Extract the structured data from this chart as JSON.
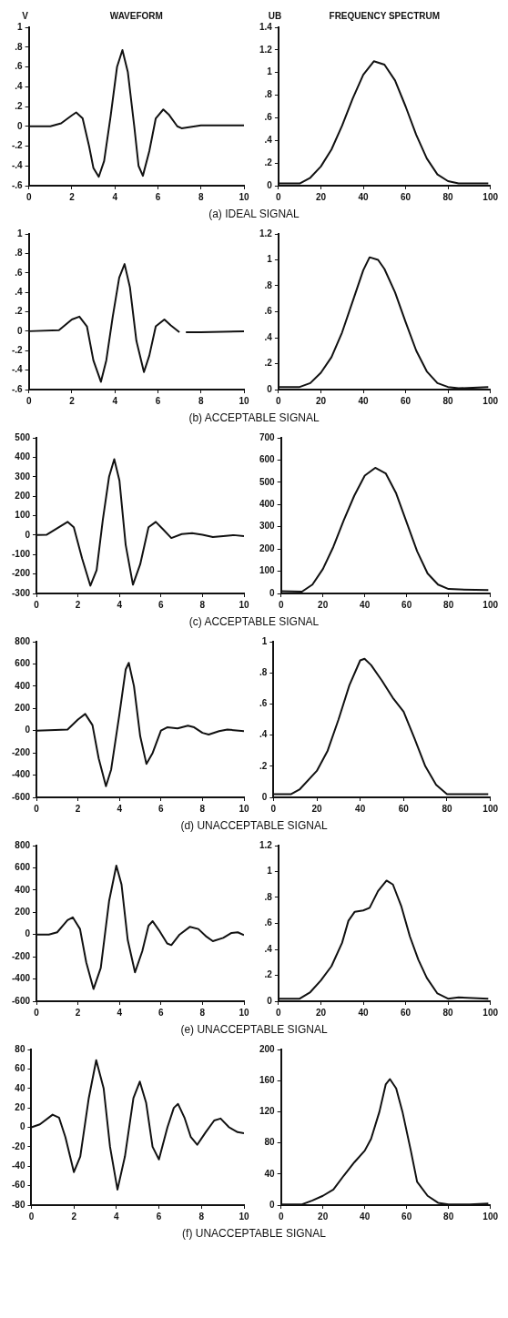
{
  "chart_data": [
    {
      "type": "line",
      "title": "WAVEFORM",
      "ylabel": "V",
      "annotations": [
        "(a) IDEAL SIGNAL"
      ],
      "color": "#111111",
      "marker": "none",
      "grid": false,
      "xlim": [
        0,
        10
      ],
      "xticks": [
        0,
        2,
        4,
        6,
        8,
        10
      ],
      "ylim": [
        -0.6,
        1
      ],
      "yticks": [
        {
          "value": 1,
          "label": "1"
        },
        {
          "value": 0.8,
          "label": ".8"
        },
        {
          "value": 0.6,
          "label": ".6"
        },
        {
          "value": 0.4,
          "label": ".4"
        },
        {
          "value": 0.2,
          "label": ".2"
        },
        0,
        {
          "value": -0.2,
          "label": "-.2"
        },
        {
          "value": -0.4,
          "label": "-.4"
        },
        {
          "value": -0.6,
          "label": "-.6"
        }
      ],
      "x": [
        0,
        1,
        1.5,
        2,
        2.2,
        2.5,
        2.8,
        3,
        3.25,
        3.5,
        3.8,
        4.1,
        4.35,
        4.6,
        4.9,
        5.1,
        5.3,
        5.6,
        5.9,
        6.25,
        6.5,
        6.9,
        7.1,
        8,
        10
      ],
      "values": [
        0,
        0,
        0.03,
        0.11,
        0.14,
        0.08,
        -0.2,
        -0.42,
        -0.51,
        -0.35,
        0.1,
        0.6,
        0.77,
        0.55,
        0,
        -0.4,
        -0.5,
        -0.25,
        0.08,
        0.17,
        0.12,
        0,
        -0.02,
        0.01,
        0.01
      ]
    },
    {
      "type": "line",
      "title": "FREQUENCY SPECTRUM",
      "ylabel": "UB",
      "color": "#111111",
      "marker": "none",
      "grid": false,
      "xlim": [
        0,
        100
      ],
      "xticks": [
        0,
        20,
        40,
        60,
        80,
        100
      ],
      "ylim": [
        0,
        1.4
      ],
      "yticks": [
        {
          "value": 1.4,
          "label": "1.4"
        },
        {
          "value": 1.2,
          "label": "1.2"
        },
        1,
        {
          "value": 0.8,
          "label": ".8"
        },
        {
          "value": 0.6,
          "label": ".6"
        },
        {
          "value": 0.4,
          "label": ".4"
        },
        {
          "value": 0.2,
          "label": ".2"
        },
        0
      ],
      "x": [
        0,
        10,
        15,
        20,
        25,
        30,
        35,
        40,
        45,
        50,
        55,
        60,
        65,
        70,
        75,
        80,
        85,
        99
      ],
      "values": [
        0.02,
        0.02,
        0.07,
        0.17,
        0.32,
        0.53,
        0.77,
        0.98,
        1.1,
        1.07,
        0.93,
        0.7,
        0.45,
        0.24,
        0.1,
        0.04,
        0.02,
        0.02
      ]
    },
    {
      "type": "line",
      "annotations": [
        "(b) ACCEPTABLE SIGNAL"
      ],
      "color": "#111111",
      "marker": "none",
      "grid": false,
      "xlim": [
        0,
        10
      ],
      "xticks": [
        0,
        2,
        4,
        6,
        8,
        10
      ],
      "ylim": [
        -0.6,
        1
      ],
      "yticks": [
        {
          "value": 1,
          "label": "1"
        },
        {
          "value": 0.8,
          "label": ".8"
        },
        {
          "value": 0.6,
          "label": ".6"
        },
        {
          "value": 0.4,
          "label": ".4"
        },
        {
          "value": 0.2,
          "label": ".2"
        },
        0,
        {
          "value": -0.2,
          "label": "-.2"
        },
        {
          "value": -0.4,
          "label": "-.4"
        },
        {
          "value": -0.6,
          "label": "-.6"
        }
      ],
      "x": [
        0,
        1.4,
        2,
        2.35,
        2.7,
        3,
        3.35,
        3.6,
        3.9,
        4.2,
        4.45,
        4.7,
        5,
        5.35,
        5.6,
        5.9,
        6.3,
        6.6,
        7,
        7.15,
        7.3,
        8,
        10
      ],
      "values": [
        0,
        0.01,
        0.12,
        0.15,
        0.05,
        -0.3,
        -0.52,
        -0.3,
        0.15,
        0.55,
        0.69,
        0.45,
        -0.1,
        -0.42,
        -0.25,
        0.05,
        0.12,
        0.06,
        -0.01,
        null,
        -0.01,
        -0.01,
        0
      ]
    },
    {
      "type": "line",
      "color": "#111111",
      "marker": "none",
      "grid": false,
      "xlim": [
        0,
        100
      ],
      "xticks": [
        0,
        20,
        40,
        60,
        80,
        100
      ],
      "ylim": [
        0,
        1.2
      ],
      "yticks": [
        {
          "value": 1.2,
          "label": "1.2"
        },
        1,
        {
          "value": 0.8,
          "label": ".8"
        },
        {
          "value": 0.6,
          "label": ".6"
        },
        {
          "value": 0.4,
          "label": ".4"
        },
        {
          "value": 0.2,
          "label": ".2"
        },
        0
      ],
      "x": [
        0,
        10,
        15,
        20,
        25,
        30,
        35,
        40,
        43,
        47,
        50,
        55,
        60,
        65,
        70,
        75,
        80,
        85,
        99
      ],
      "values": [
        0.02,
        0.02,
        0.05,
        0.13,
        0.25,
        0.44,
        0.68,
        0.92,
        1.02,
        1,
        0.93,
        0.75,
        0.52,
        0.3,
        0.14,
        0.05,
        0.02,
        0.01,
        0.02
      ]
    },
    {
      "type": "line",
      "annotations": [
        "(c) ACCEPTABLE SIGNAL"
      ],
      "color": "#111111",
      "marker": "none",
      "grid": false,
      "xlim": [
        0,
        10
      ],
      "xticks": [
        0,
        2,
        4,
        6,
        8,
        10
      ],
      "ylim": [
        -300,
        500
      ],
      "yticks": [
        500,
        400,
        300,
        200,
        100,
        0,
        -100,
        -200,
        -300
      ],
      "x": [
        0,
        0.5,
        1,
        1.5,
        1.8,
        2.2,
        2.6,
        2.9,
        3.2,
        3.5,
        3.75,
        4,
        4.3,
        4.65,
        5,
        5.4,
        5.75,
        6.1,
        6.5,
        7,
        7.5,
        8,
        8.5,
        9,
        9.5,
        10
      ],
      "values": [
        0,
        2,
        35,
        68,
        40,
        -120,
        -260,
        -180,
        80,
        300,
        390,
        280,
        -50,
        -255,
        -150,
        40,
        68,
        30,
        -15,
        5,
        10,
        2,
        -10,
        -5,
        0,
        -5
      ]
    },
    {
      "type": "line",
      "color": "#111111",
      "marker": "none",
      "grid": false,
      "xlim": [
        0,
        100
      ],
      "xticks": [
        0,
        20,
        40,
        60,
        80,
        100
      ],
      "ylim": [
        0,
        700
      ],
      "yticks": [
        700,
        600,
        500,
        400,
        300,
        200,
        100,
        0
      ],
      "x": [
        0,
        10,
        15,
        20,
        25,
        30,
        35,
        40,
        45,
        50,
        55,
        60,
        65,
        70,
        75,
        80,
        85,
        99
      ],
      "values": [
        10,
        8,
        40,
        110,
        210,
        330,
        440,
        530,
        565,
        540,
        450,
        320,
        190,
        90,
        40,
        20,
        18,
        15
      ]
    },
    {
      "type": "line",
      "annotations": [
        "(d) UNACCEPTABLE SIGNAL"
      ],
      "color": "#111111",
      "marker": "none",
      "grid": false,
      "xlim": [
        0,
        10
      ],
      "xticks": [
        0,
        2,
        4,
        6,
        8,
        10
      ],
      "ylim": [
        -600,
        800
      ],
      "yticks": [
        800,
        600,
        400,
        200,
        0,
        -200,
        -400,
        -600
      ],
      "x": [
        0,
        1.5,
        2,
        2.35,
        2.7,
        3,
        3.35,
        3.6,
        4,
        4.3,
        4.45,
        4.7,
        5,
        5.3,
        5.6,
        6,
        6.3,
        6.8,
        7.3,
        7.6,
        8,
        8.3,
        8.8,
        9.2,
        10
      ],
      "values": [
        0,
        10,
        100,
        150,
        50,
        -250,
        -500,
        -350,
        150,
        550,
        610,
        400,
        -50,
        -300,
        -200,
        0,
        30,
        20,
        45,
        30,
        -20,
        -35,
        -5,
        10,
        -5
      ]
    },
    {
      "type": "line",
      "color": "#111111",
      "marker": "none",
      "grid": false,
      "xlim": [
        0,
        100
      ],
      "xticks": [
        0,
        20,
        40,
        60,
        80,
        100
      ],
      "ylim": [
        0,
        1
      ],
      "yticks": [
        1,
        {
          "value": 0.8,
          "label": ".8"
        },
        {
          "value": 0.6,
          "label": ".6"
        },
        {
          "value": 0.4,
          "label": ".4"
        },
        {
          "value": 0.2,
          "label": ".2"
        },
        0
      ],
      "x": [
        0,
        8,
        12,
        20,
        25,
        30,
        35,
        40,
        42,
        45,
        50,
        55,
        60,
        65,
        70,
        75,
        80,
        99
      ],
      "values": [
        0.02,
        0.02,
        0.05,
        0.17,
        0.3,
        0.5,
        0.72,
        0.88,
        0.89,
        0.85,
        0.75,
        0.64,
        0.55,
        0.38,
        0.2,
        0.08,
        0.02,
        0.02
      ]
    },
    {
      "type": "line",
      "annotations": [
        "(e) UNACCEPTABLE SIGNAL"
      ],
      "color": "#111111",
      "marker": "none",
      "grid": false,
      "xlim": [
        0,
        10
      ],
      "xticks": [
        0,
        2,
        4,
        6,
        8,
        10
      ],
      "ylim": [
        -600,
        800
      ],
      "yticks": [
        800,
        600,
        400,
        200,
        0,
        -200,
        -400,
        -600
      ],
      "x": [
        0,
        0.6,
        1,
        1.5,
        1.75,
        2.1,
        2.4,
        2.75,
        3.1,
        3.5,
        3.85,
        4.1,
        4.4,
        4.75,
        5.1,
        5.4,
        5.6,
        5.9,
        6.3,
        6.5,
        6.9,
        7.4,
        7.8,
        8.2,
        8.5,
        9,
        9.4,
        9.7,
        10
      ],
      "values": [
        0,
        0,
        20,
        130,
        155,
        50,
        -250,
        -490,
        -300,
        300,
        620,
        450,
        -50,
        -340,
        -150,
        80,
        120,
        40,
        -80,
        -95,
        0,
        70,
        50,
        -20,
        -60,
        -30,
        15,
        20,
        -5
      ]
    },
    {
      "type": "line",
      "color": "#111111",
      "marker": "none",
      "grid": false,
      "xlim": [
        0,
        100
      ],
      "xticks": [
        0,
        20,
        40,
        60,
        80,
        100
      ],
      "ylim": [
        0,
        1.2
      ],
      "yticks": [
        {
          "value": 1.2,
          "label": "1.2"
        },
        1,
        {
          "value": 0.8,
          "label": ".8"
        },
        {
          "value": 0.6,
          "label": ".6"
        },
        {
          "value": 0.4,
          "label": ".4"
        },
        {
          "value": 0.2,
          "label": ".2"
        },
        0
      ],
      "x": [
        0,
        10,
        15,
        20,
        25,
        30,
        33,
        36,
        40,
        43,
        47,
        51,
        54,
        58,
        62,
        66,
        70,
        75,
        80,
        85,
        99
      ],
      "values": [
        0.02,
        0.02,
        0.07,
        0.16,
        0.27,
        0.45,
        0.62,
        0.69,
        0.7,
        0.72,
        0.85,
        0.93,
        0.9,
        0.73,
        0.5,
        0.32,
        0.18,
        0.06,
        0.02,
        0.03,
        0.02
      ]
    },
    {
      "type": "line",
      "annotations": [
        "(f) UNACCEPTABLE SIGNAL"
      ],
      "color": "#111111",
      "marker": "none",
      "grid": false,
      "xlim": [
        0,
        10
      ],
      "xticks": [
        0,
        2,
        4,
        6,
        8,
        10
      ],
      "ylim": [
        -80,
        80
      ],
      "yticks": [
        80,
        60,
        40,
        20,
        0,
        -20,
        -40,
        -60,
        -80
      ],
      "x": [
        0,
        0.4,
        1,
        1.3,
        1.6,
        2,
        2.3,
        2.7,
        3.05,
        3.4,
        3.7,
        4.05,
        4.4,
        4.8,
        5.1,
        5.4,
        5.7,
        6,
        6.4,
        6.7,
        6.9,
        7.2,
        7.5,
        7.8,
        8.2,
        8.6,
        8.9,
        9.3,
        9.7,
        10
      ],
      "values": [
        0,
        3,
        13,
        10,
        -10,
        -46,
        -30,
        30,
        69,
        40,
        -20,
        -64,
        -30,
        30,
        47,
        25,
        -20,
        -33,
        0,
        20,
        24,
        10,
        -10,
        -18,
        -5,
        7,
        9,
        0,
        -5,
        -6
      ]
    },
    {
      "type": "line",
      "color": "#111111",
      "marker": "none",
      "grid": false,
      "xlim": [
        0,
        100
      ],
      "xticks": [
        0,
        20,
        40,
        60,
        80,
        100
      ],
      "ylim": [
        0,
        200
      ],
      "yticks": [
        200,
        160,
        120,
        80,
        40,
        0
      ],
      "x": [
        0,
        10,
        15,
        20,
        25,
        30,
        35,
        40,
        43,
        47,
        50,
        52,
        55,
        58,
        62,
        65,
        70,
        75,
        80,
        90,
        99
      ],
      "values": [
        1,
        1,
        6,
        12,
        20,
        38,
        55,
        70,
        85,
        120,
        155,
        162,
        150,
        120,
        70,
        30,
        12,
        3,
        1,
        1,
        2
      ]
    }
  ]
}
